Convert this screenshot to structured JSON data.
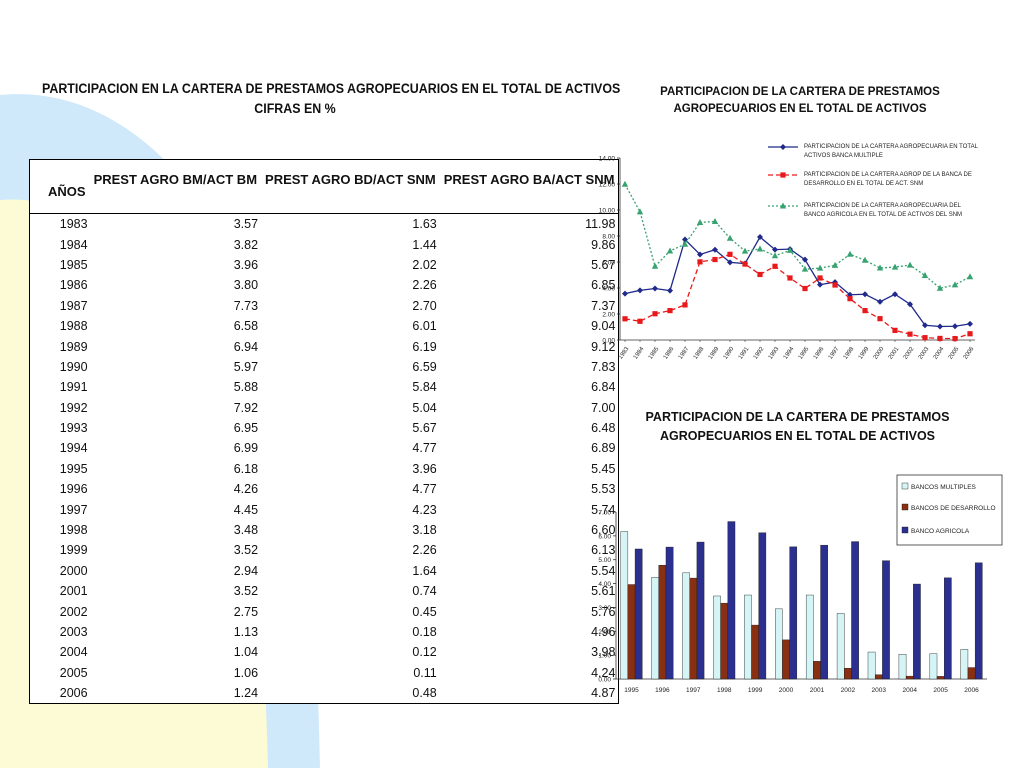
{
  "table": {
    "title_line1": "PARTICIPACION EN LA CARTERA DE PRESTAMOS AGROPECUARIOS EN EL TOTAL DE ACTIVOS",
    "title_line2": "CIFRAS EN %",
    "headers": [
      "AÑOS",
      "PREST AGRO BM/ACT BM",
      "PREST AGRO BD/ACT SNM",
      "PREST AGRO BA/ACT SNM"
    ],
    "rows": [
      [
        "1983",
        "3.57",
        "1.63",
        "11.98"
      ],
      [
        "1984",
        "3.82",
        "1.44",
        "9.86"
      ],
      [
        "1985",
        "3.96",
        "2.02",
        "5.67"
      ],
      [
        "1986",
        "3.80",
        "2.26",
        "6.85"
      ],
      [
        "1987",
        "7.73",
        "2.70",
        "7.37"
      ],
      [
        "1988",
        "6.58",
        "6.01",
        "9.04"
      ],
      [
        "1989",
        "6.94",
        "6.19",
        "9.12"
      ],
      [
        "1990",
        "5.97",
        "6.59",
        "7.83"
      ],
      [
        "1991",
        "5.88",
        "5.84",
        "6.84"
      ],
      [
        "1992",
        "7.92",
        "5.04",
        "7.00"
      ],
      [
        "1993",
        "6.95",
        "5.67",
        "6.48"
      ],
      [
        "1994",
        "6.99",
        "4.77",
        "6.89"
      ],
      [
        "1995",
        "6.18",
        "3.96",
        "5.45"
      ],
      [
        "1996",
        "4.26",
        "4.77",
        "5.53"
      ],
      [
        "1997",
        "4.45",
        "4.23",
        "5.74"
      ],
      [
        "1998",
        "3.48",
        "3.18",
        "6.60"
      ],
      [
        "1999",
        "3.52",
        "2.26",
        "6.13"
      ],
      [
        "2000",
        "2.94",
        "1.64",
        "5.54"
      ],
      [
        "2001",
        "3.52",
        "0.74",
        "5.61"
      ],
      [
        "2002",
        "2.75",
        "0.45",
        "5.76"
      ],
      [
        "2003",
        "1.13",
        "0.18",
        "4.96"
      ],
      [
        "2004",
        "1.04",
        "0.12",
        "3.98"
      ],
      [
        "2005",
        "1.06",
        "0.11",
        "4.24"
      ],
      [
        "2006",
        "1.24",
        "0.48",
        "4.87"
      ]
    ]
  },
  "colors": {
    "bm": "#1f2a8a",
    "bd": "#e8191a",
    "ba": "#37a370",
    "bar_bm": "#d4f4f6",
    "bar_bd": "#8a3012",
    "bar_ba": "#2b2f8f",
    "arc_blue": "#cfe9fb",
    "arc_yellow": "#fdfbd6"
  },
  "chart_data": [
    {
      "type": "line",
      "title_line1": "PARTICIPACION DE LA CARTERA DE PRESTAMOS",
      "title_line2": "AGROPECUARIOS EN EL TOTAL DE ACTIVOS",
      "x": [
        "1983",
        "1984",
        "1985",
        "1986",
        "1987",
        "1988",
        "1989",
        "1990",
        "1991",
        "1992",
        "1993",
        "1994",
        "1995",
        "1996",
        "1997",
        "1998",
        "1999",
        "2000",
        "2001",
        "2002",
        "2003",
        "2004",
        "2005",
        "2006"
      ],
      "x_tick_labels": [
        "1983",
        "1984",
        "1985",
        "1986",
        "1987",
        "1988",
        "1989",
        "1990",
        "1991",
        "1992",
        "1993",
        "1994",
        "1995",
        "1996",
        "1997",
        "1998",
        "1999",
        "2000",
        "2001",
        "2002",
        "2003",
        "2004",
        "2005",
        "2006"
      ],
      "ylim": [
        0,
        14
      ],
      "y_ticks": [
        "0.00",
        "2.00",
        "4.00",
        "6.00",
        "8.00",
        "10.00",
        "12.00",
        "14.00"
      ],
      "legend_position": "top-right",
      "series": [
        {
          "name": "PARTICIPACION DE LA CARTERA AGROPECUARIA EN TOTAL ACTIVOS BANCA MULTIPLE",
          "legend_line1": "PARTICIPACION DE LA CARTERA AGROPECUARIA EN TOTAL",
          "legend_line2": "ACTIVOS BANCA MULTIPLE",
          "values": [
            3.57,
            3.82,
            3.96,
            3.8,
            7.73,
            6.58,
            6.94,
            5.97,
            5.88,
            7.92,
            6.95,
            6.99,
            6.18,
            4.26,
            4.45,
            3.48,
            3.52,
            2.94,
            3.52,
            2.75,
            1.13,
            1.04,
            1.06,
            1.24
          ]
        },
        {
          "name": "PARTICIPACION DE LA CARTERA AGROP DE LA BANCA DE DESARROLLO EN EL TOTAL DE ACT. SNM",
          "legend_line1": "PARTICIPACION DE LA CARTERA AGROP DE LA BANCA DE",
          "legend_line2": "DESARROLLO EN EL TOTAL DE ACT. SNM",
          "values": [
            1.63,
            1.44,
            2.02,
            2.26,
            2.7,
            6.01,
            6.19,
            6.59,
            5.84,
            5.04,
            5.67,
            4.77,
            3.96,
            4.77,
            4.23,
            3.18,
            2.26,
            1.64,
            0.74,
            0.45,
            0.18,
            0.12,
            0.11,
            0.48
          ]
        },
        {
          "name": "PARTICIPACION DE LA CARTERA AGROPECUARIA DEL BANCO AGRICOLA EN EL TOTAL DE ACTIVOS DEL SNM",
          "legend_line1": "PARTICIPACION DE LA CARTERA AGROPECUARIA DEL",
          "legend_line2": "BANCO AGRICOLA EN EL TOTAL DE ACTIVOS DEL SNM",
          "values": [
            11.98,
            9.86,
            5.67,
            6.85,
            7.37,
            9.04,
            9.12,
            7.83,
            6.84,
            7.0,
            6.48,
            6.89,
            5.45,
            5.53,
            5.74,
            6.6,
            6.13,
            5.54,
            5.61,
            5.76,
            4.96,
            3.98,
            4.24,
            4.87
          ]
        }
      ]
    },
    {
      "type": "bar",
      "title_line1": "PARTICIPACION DE LA CARTERA DE PRESTAMOS",
      "title_line2": "AGROPECUARIOS EN EL TOTAL DE ACTIVOS",
      "categories": [
        "1995",
        "1996",
        "1997",
        "1998",
        "1999",
        "2000",
        "2001",
        "2002",
        "2003",
        "2004",
        "2005",
        "2006"
      ],
      "ylim": [
        0,
        7
      ],
      "y_ticks": [
        "0.00",
        "1.00",
        "2.00",
        "3.00",
        "4.00",
        "5.00",
        "6.00",
        "7.00"
      ],
      "legend_position": "top-right",
      "series": [
        {
          "name": "BANCOS MULTIPLES",
          "values": [
            6.18,
            4.26,
            4.45,
            3.48,
            3.52,
            2.94,
            3.52,
            2.75,
            1.13,
            1.04,
            1.06,
            1.24
          ]
        },
        {
          "name": "BANCOS DE DESARROLLO",
          "values": [
            3.96,
            4.77,
            4.23,
            3.18,
            2.26,
            1.64,
            0.74,
            0.45,
            0.18,
            0.12,
            0.11,
            0.48
          ]
        },
        {
          "name": "BANCO AGRICOLA",
          "values": [
            5.45,
            5.53,
            5.74,
            6.6,
            6.13,
            5.54,
            5.61,
            5.76,
            4.96,
            3.98,
            4.24,
            4.87
          ]
        }
      ]
    }
  ]
}
